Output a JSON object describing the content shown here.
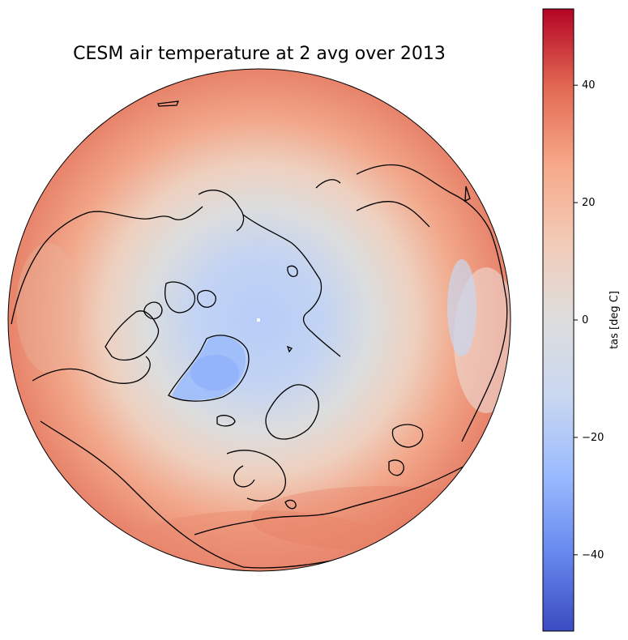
{
  "title": "CESM air temperature at 2 avg over 2013",
  "colorbar": {
    "label": "tas [deg C]",
    "min": -53,
    "max": 53,
    "ticks": [
      {
        "value": 40,
        "label": "40"
      },
      {
        "value": 20,
        "label": "20"
      },
      {
        "value": 0,
        "label": "0"
      },
      {
        "value": -20,
        "label": "−20"
      },
      {
        "value": -40,
        "label": "−40"
      }
    ],
    "colormap": "coolwarm",
    "colors": [
      "#3b4cc0",
      "#6788ee",
      "#9abbff",
      "#c9d7f0",
      "#dddddd",
      "#f2cbb7",
      "#f7a889",
      "#e26952",
      "#b40426"
    ]
  },
  "map": {
    "projection": "orthographic",
    "center": "North Pole",
    "coastline_color": "#000000",
    "pole_temperature": -25,
    "edge_temperature": 30
  },
  "chart_data": {
    "type": "heatmap",
    "title": "CESM air temperature at 2 avg over 2013",
    "variable": "tas",
    "units": "deg C",
    "year": 2013,
    "colorbar_range": [
      -53,
      53
    ],
    "colorbar_ticks": [
      -40,
      -20,
      0,
      20,
      40
    ]
  }
}
